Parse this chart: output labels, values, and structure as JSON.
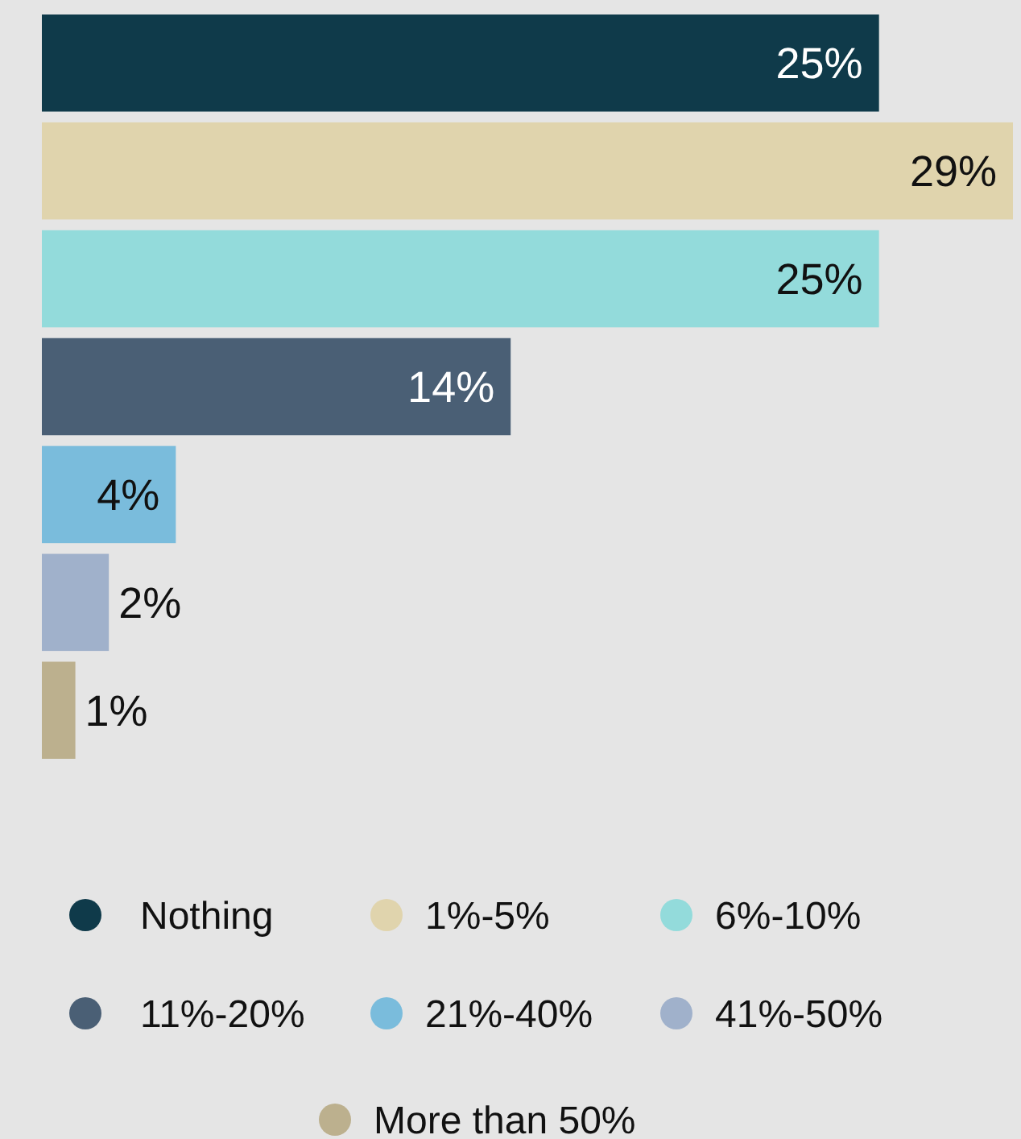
{
  "chart_data": {
    "type": "bar",
    "orientation": "horizontal",
    "stacked": true,
    "categories": [
      null,
      null,
      null,
      null,
      null,
      null,
      null
    ],
    "series": [
      {
        "name": "Nothing",
        "color": "#0f3a4a",
        "values": [
          25,
          null,
          null,
          null,
          null,
          null,
          null
        ],
        "value_labels": [
          "25%",
          null,
          null,
          null,
          null,
          null,
          null
        ]
      },
      {
        "name": "1%-5%",
        "color": "#e0d4ad",
        "values": [
          null,
          29,
          null,
          null,
          null,
          null,
          null
        ],
        "value_labels": [
          null,
          "29%",
          null,
          null,
          null,
          null,
          null
        ]
      },
      {
        "name": "6%-10%",
        "color": "#93dbdb",
        "values": [
          null,
          null,
          25,
          null,
          null,
          null,
          null
        ],
        "value_labels": [
          null,
          null,
          "25%",
          null,
          null,
          null,
          null
        ]
      },
      {
        "name": "11%-20%",
        "color": "#4a5f75",
        "values": [
          null,
          null,
          null,
          14,
          null,
          null,
          null
        ],
        "value_labels": [
          null,
          null,
          null,
          "14%",
          null,
          null,
          null
        ]
      },
      {
        "name": "21%-40%",
        "color": "#7abcdc",
        "values": [
          null,
          null,
          null,
          null,
          4,
          null,
          null
        ],
        "value_labels": [
          null,
          null,
          null,
          null,
          "4%",
          null,
          null
        ]
      },
      {
        "name": "41%-50%",
        "color": "#a0b1cb",
        "values": [
          null,
          null,
          null,
          null,
          null,
          2,
          null
        ],
        "value_labels": [
          null,
          null,
          null,
          null,
          null,
          "2%",
          null
        ]
      },
      {
        "name": "More than 50%",
        "color": "#bcb08e",
        "values": [
          null,
          null,
          null,
          null,
          null,
          null,
          1
        ],
        "value_labels": [
          null,
          null,
          null,
          null,
          null,
          null,
          "1%"
        ]
      }
    ],
    "legend": "bottom"
  }
}
